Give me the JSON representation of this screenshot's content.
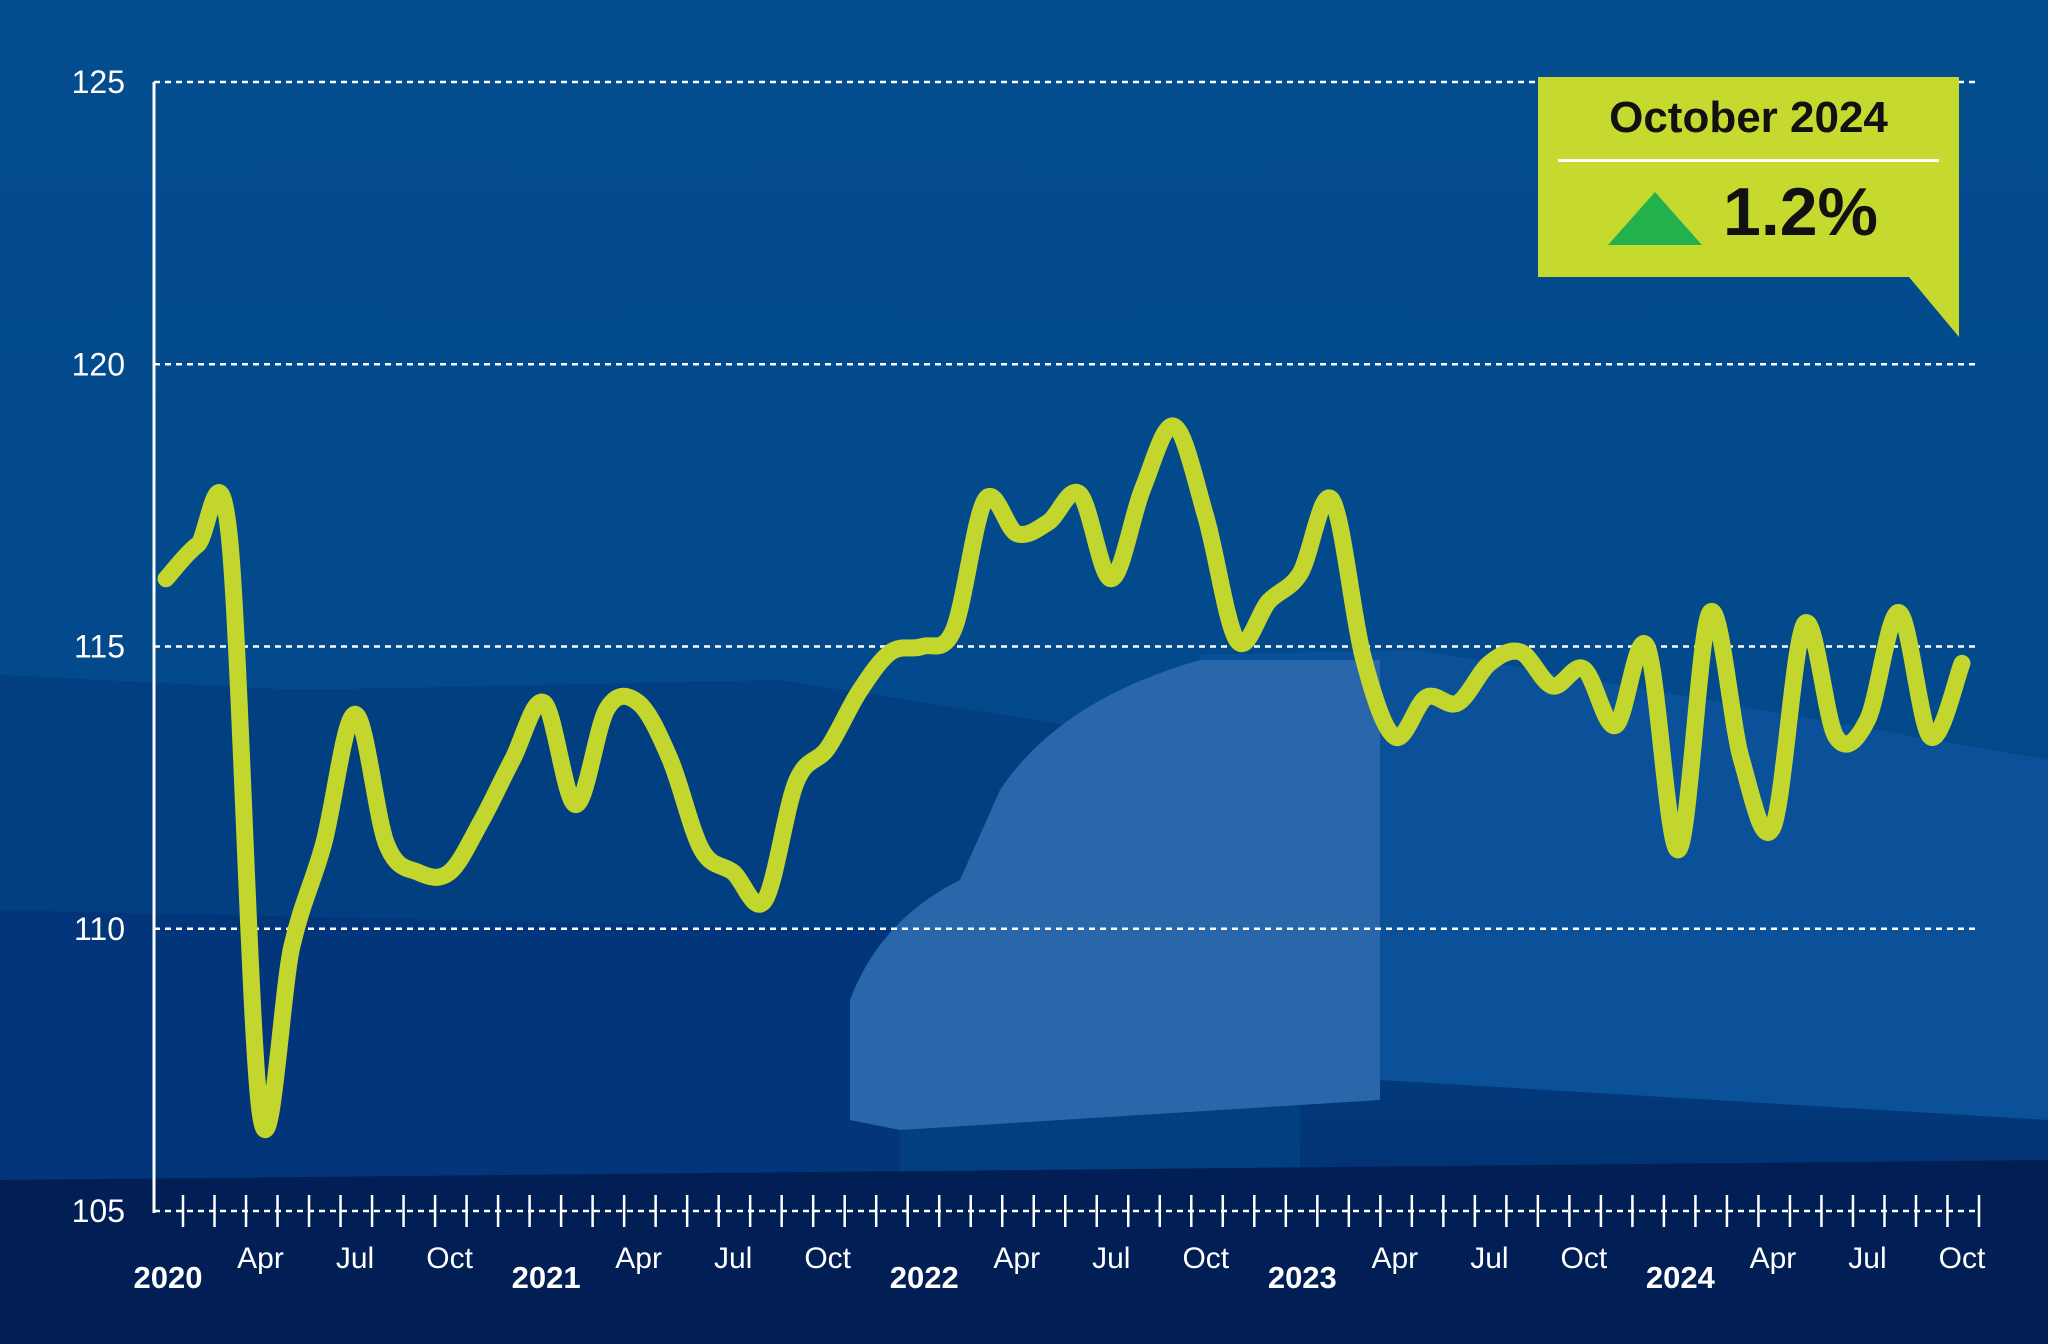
{
  "chart_data": {
    "type": "line",
    "title": "",
    "xlabel": "",
    "ylabel": "",
    "ylim": [
      105,
      125
    ],
    "yticks": [
      105,
      110,
      115,
      120,
      125
    ],
    "grid": "horizontal dashed",
    "x_start": "2020-01",
    "x_end": "2024-10",
    "x_tick_labels": [
      {
        "month": "2020-01",
        "label": "2020",
        "year": true
      },
      {
        "month": "2020-04",
        "label": "Apr"
      },
      {
        "month": "2020-07",
        "label": "Jul"
      },
      {
        "month": "2020-10",
        "label": "Oct"
      },
      {
        "month": "2021-01",
        "label": "2021",
        "year": true
      },
      {
        "month": "2021-04",
        "label": "Apr"
      },
      {
        "month": "2021-07",
        "label": "Jul"
      },
      {
        "month": "2021-10",
        "label": "Oct"
      },
      {
        "month": "2022-01",
        "label": "2022",
        "year": true
      },
      {
        "month": "2022-04",
        "label": "Apr"
      },
      {
        "month": "2022-07",
        "label": "Jul"
      },
      {
        "month": "2022-10",
        "label": "Oct"
      },
      {
        "month": "2023-01",
        "label": "2023",
        "year": true
      },
      {
        "month": "2023-04",
        "label": "Apr"
      },
      {
        "month": "2023-07",
        "label": "Jul"
      },
      {
        "month": "2023-10",
        "label": "Oct"
      },
      {
        "month": "2024-01",
        "label": "2024",
        "year": true
      },
      {
        "month": "2024-04",
        "label": "Apr"
      },
      {
        "month": "2024-07",
        "label": "Jul"
      },
      {
        "month": "2024-10",
        "label": "Oct"
      }
    ],
    "series": [
      {
        "color": "#c2d62e",
        "values": [
          116.2,
          116.8,
          117.0,
          106.7,
          109.7,
          111.5,
          113.8,
          111.5,
          111.0,
          111.0,
          111.9,
          113.0,
          114.0,
          112.2,
          113.9,
          114.0,
          113.0,
          111.4,
          111.0,
          110.5,
          112.6,
          113.2,
          114.2,
          114.9,
          115.0,
          115.3,
          117.6,
          117.0,
          117.2,
          117.7,
          116.2,
          117.8,
          118.9,
          117.3,
          115.1,
          115.8,
          116.3,
          117.6,
          114.8,
          113.4,
          114.1,
          114.0,
          114.7,
          114.9,
          114.3,
          114.6,
          113.6,
          115.0,
          111.4,
          115.6,
          113.0,
          111.8,
          115.4,
          113.4,
          113.7,
          115.6,
          113.4,
          114.7
        ]
      }
    ]
  },
  "badge": {
    "title": "October 2024",
    "direction": "up",
    "value": "1.2%",
    "bg_color": "#c6d92f",
    "arrow_color": "#22b14c"
  },
  "colors": {
    "background": "#034a8c",
    "line": "#c2d62e"
  }
}
